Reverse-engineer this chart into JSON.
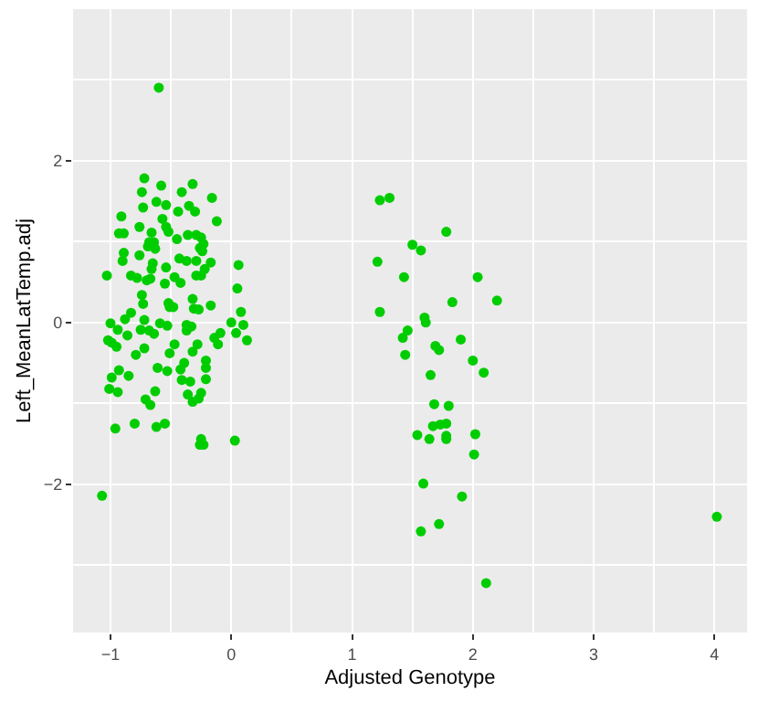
{
  "chart_data": {
    "type": "scatter",
    "xlabel": "Adjusted Genotype",
    "ylabel": "Left_MeanLatTemp.adj",
    "xlim": [
      -1.31,
      4.27
    ],
    "ylim": [
      -3.83,
      3.87
    ],
    "xticks": [
      {
        "value": -1,
        "label": "−1"
      },
      0,
      1,
      2,
      3,
      4
    ],
    "yticks": [
      {
        "value": -2,
        "label": "−2"
      },
      0,
      2
    ],
    "grid": true,
    "marker": "circle",
    "series": [
      {
        "color": "#00cd00",
        "x": [
          -0.6,
          -0.72,
          -0.58,
          -0.32,
          -0.74,
          -0.41,
          -0.16,
          -0.62,
          -0.54,
          -0.73,
          -0.35,
          -0.44,
          -0.3,
          -0.91,
          -0.57,
          -0.12,
          -0.76,
          -0.54,
          -0.52,
          -0.93,
          -0.89,
          -0.66,
          -0.36,
          -0.29,
          -0.25,
          -0.45,
          -0.68,
          -0.64,
          -0.23,
          -0.69,
          -0.63,
          -0.26,
          -0.89,
          -0.76,
          -0.24,
          -0.9,
          -0.43,
          -0.37,
          -0.29,
          -0.17,
          -0.65,
          -0.54,
          -0.66,
          0.06,
          -0.22,
          -1.03,
          -0.83,
          -0.78,
          -0.67,
          -0.7,
          -0.47,
          -0.29,
          -0.25,
          -0.55,
          -0.42,
          0.05,
          -0.74,
          -0.32,
          -0.73,
          -0.52,
          -0.51,
          -0.48,
          -0.31,
          -0.27,
          -0.17,
          0.08,
          -0.83,
          -0.88,
          -0.72,
          -1.0,
          -0.59,
          0.0,
          -0.53,
          -0.37,
          -0.33,
          0.1,
          -0.75,
          -0.68,
          -0.94,
          -0.64,
          -0.37,
          -0.09,
          0.04,
          -1.02,
          -0.86,
          -0.14,
          0.13,
          -0.99,
          -0.95,
          -0.72,
          -0.47,
          -0.28,
          -0.11,
          -0.79,
          -0.51,
          -0.32,
          -0.21,
          -0.39,
          -0.61,
          -0.21,
          -0.93,
          -0.42,
          -0.53,
          -0.99,
          -0.85,
          -0.41,
          -0.34,
          -0.21,
          -0.94,
          -1.01,
          -0.63,
          -0.25,
          -0.36,
          -0.71,
          -0.32,
          -0.27,
          -0.67,
          -0.96,
          -0.8,
          -0.62,
          -0.55,
          -0.25,
          -0.26,
          -0.23,
          0.03,
          -1.07,
          1.23,
          1.31,
          1.78,
          1.5,
          1.57,
          1.21,
          1.43,
          2.04,
          1.83,
          2.2,
          1.23,
          1.6,
          1.61,
          1.46,
          1.42,
          1.9,
          1.69,
          1.72,
          1.44,
          2.0,
          2.09,
          1.65,
          1.68,
          1.8,
          1.67,
          1.73,
          1.78,
          1.54,
          1.64,
          1.78,
          1.78,
          2.02,
          2.01,
          1.59,
          1.91,
          1.72,
          1.57,
          2.11,
          4.02
        ],
        "values": [
          2.9,
          1.78,
          1.69,
          1.71,
          1.61,
          1.61,
          1.54,
          1.49,
          1.45,
          1.42,
          1.44,
          1.37,
          1.37,
          1.31,
          1.28,
          1.25,
          1.18,
          1.18,
          1.12,
          1.1,
          1.1,
          1.11,
          1.08,
          1.08,
          1.05,
          1.03,
          0.99,
          0.99,
          0.97,
          0.94,
          0.91,
          0.92,
          0.86,
          0.83,
          0.88,
          0.76,
          0.79,
          0.76,
          0.76,
          0.74,
          0.73,
          0.68,
          0.66,
          0.71,
          0.66,
          0.58,
          0.58,
          0.55,
          0.54,
          0.52,
          0.56,
          0.58,
          0.58,
          0.48,
          0.49,
          0.42,
          0.34,
          0.29,
          0.23,
          0.24,
          0.19,
          0.19,
          0.17,
          0.16,
          0.21,
          0.13,
          0.12,
          0.04,
          0.03,
          -0.01,
          -0.01,
          0.0,
          -0.04,
          -0.03,
          -0.05,
          -0.03,
          -0.09,
          -0.1,
          -0.09,
          -0.14,
          -0.1,
          -0.13,
          -0.13,
          -0.22,
          -0.16,
          -0.19,
          -0.22,
          -0.25,
          -0.3,
          -0.32,
          -0.27,
          -0.27,
          -0.27,
          -0.4,
          -0.38,
          -0.36,
          -0.47,
          -0.5,
          -0.56,
          -0.56,
          -0.59,
          -0.58,
          -0.6,
          -0.68,
          -0.66,
          -0.71,
          -0.73,
          -0.7,
          -0.86,
          -0.82,
          -0.85,
          -0.87,
          -0.89,
          -0.95,
          -0.98,
          -0.94,
          -1.02,
          -1.31,
          -1.25,
          -1.29,
          -1.25,
          -1.44,
          -1.51,
          -1.51,
          -1.46,
          -2.14,
          1.51,
          1.54,
          1.12,
          0.96,
          0.89,
          0.75,
          0.56,
          0.56,
          0.25,
          0.27,
          0.13,
          0.06,
          0.0,
          -0.1,
          -0.19,
          -0.21,
          -0.29,
          -0.34,
          -0.4,
          -0.47,
          -0.62,
          -0.65,
          -1.01,
          -1.03,
          -1.28,
          -1.26,
          -1.25,
          -1.39,
          -1.44,
          -1.4,
          -1.44,
          -1.38,
          -1.63,
          -1.99,
          -2.15,
          -2.49,
          -2.58,
          -3.22,
          -2.4
        ]
      }
    ]
  }
}
